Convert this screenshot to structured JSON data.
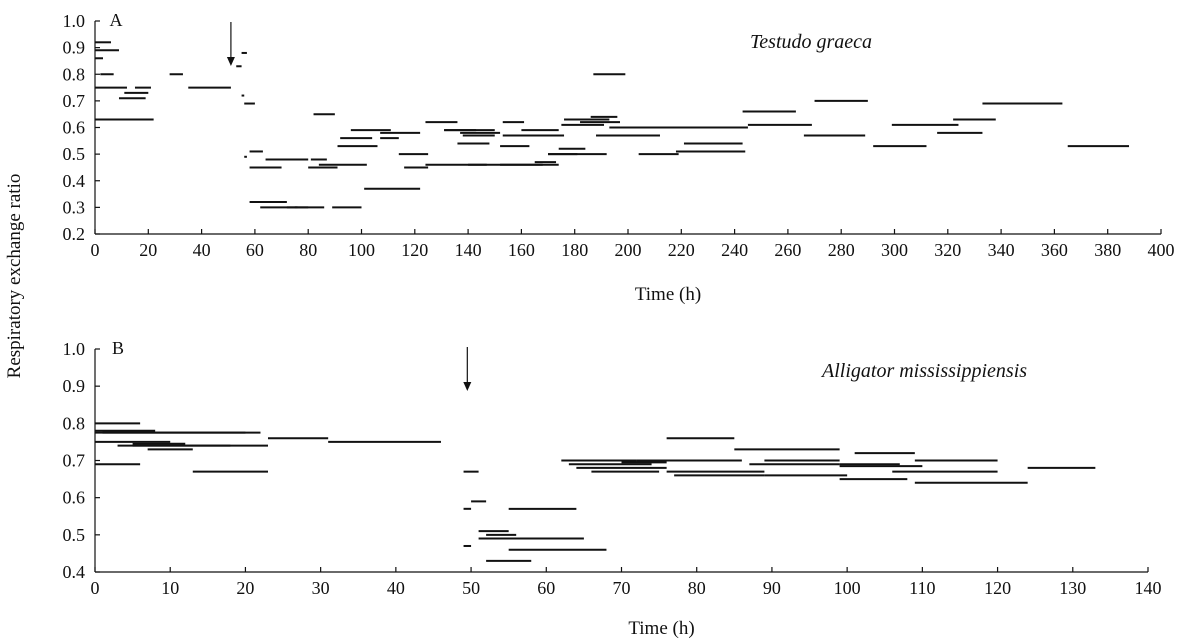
{
  "figure": {
    "shared_ylabel": "Respiratory exchange ratio"
  },
  "chart_data": [
    {
      "type": "line",
      "panel": "A",
      "annotation": "Testudo graeca",
      "xlabel": "Time (h)",
      "xlim": [
        0,
        400
      ],
      "ylim": [
        0.2,
        1.0
      ],
      "xticks": [
        0,
        20,
        40,
        60,
        80,
        100,
        120,
        140,
        160,
        180,
        200,
        220,
        240,
        260,
        280,
        300,
        320,
        340,
        360,
        380,
        400
      ],
      "yticks": [
        0.2,
        0.3,
        0.4,
        0.5,
        0.6,
        0.7,
        0.8,
        0.9,
        1.0
      ],
      "ytick_labels": [
        "0.2",
        "0.3",
        "0.4",
        "0.5",
        "0.6",
        "0.7",
        "0.8",
        "0.9",
        "1.0"
      ],
      "arrow_at_x": 51,
      "grid": false,
      "series": [
        {
          "segments": [
            [
              0,
              6,
              0.92
            ],
            [
              0,
              9,
              0.89
            ],
            [
              0,
              3,
              0.86
            ],
            [
              2,
              7,
              0.8
            ],
            [
              0,
              12,
              0.75
            ],
            [
              0,
              22,
              0.63
            ],
            [
              9,
              19,
              0.71
            ],
            [
              11,
              20,
              0.73
            ],
            [
              15,
              21,
              0.75
            ],
            [
              28,
              33,
              0.8
            ],
            [
              35,
              51,
              0.75
            ],
            [
              55,
              57,
              0.88
            ],
            [
              53,
              55,
              0.83
            ],
            [
              55,
              56,
              0.72
            ],
            [
              56,
              60,
              0.69
            ],
            [
              56,
              57,
              0.49
            ],
            [
              58,
              63,
              0.51
            ],
            [
              58,
              70,
              0.45
            ],
            [
              58,
              72,
              0.32
            ],
            [
              62,
              76,
              0.3
            ],
            [
              64,
              80,
              0.48
            ],
            [
              72,
              80,
              0.3
            ],
            [
              75,
              86,
              0.3
            ],
            [
              80,
              91,
              0.45
            ],
            [
              81,
              87,
              0.48
            ],
            [
              82,
              90,
              0.65
            ],
            [
              84,
              102,
              0.46
            ],
            [
              89,
              100,
              0.3
            ],
            [
              91,
              106,
              0.53
            ],
            [
              92,
              104,
              0.56
            ],
            [
              96,
              111,
              0.59
            ],
            [
              101,
              122,
              0.37
            ],
            [
              107,
              122,
              0.58
            ],
            [
              107,
              114,
              0.56
            ],
            [
              114,
              125,
              0.5
            ],
            [
              116,
              125,
              0.45
            ],
            [
              124,
              147,
              0.46
            ],
            [
              124,
              136,
              0.62
            ],
            [
              131,
              150,
              0.59
            ],
            [
              131,
              143,
              0.59
            ],
            [
              136,
              148,
              0.54
            ],
            [
              137,
              152,
              0.58
            ],
            [
              138,
              150,
              0.57
            ],
            [
              140,
              168,
              0.46
            ],
            [
              152,
              174,
              0.46
            ],
            [
              152,
              163,
              0.53
            ],
            [
              153,
              161,
              0.62
            ],
            [
              153,
              176,
              0.57
            ],
            [
              160,
              174,
              0.59
            ],
            [
              165,
              173,
              0.47
            ],
            [
              170,
              181,
              0.5
            ],
            [
              170,
              192,
              0.5
            ],
            [
              174,
              184,
              0.52
            ],
            [
              175,
              191,
              0.61
            ],
            [
              176,
              193,
              0.63
            ],
            [
              182,
              197,
              0.62
            ],
            [
              186,
              196,
              0.64
            ],
            [
              187,
              199,
              0.8
            ],
            [
              188,
              212,
              0.57
            ],
            [
              193,
              224,
              0.6
            ],
            [
              204,
              219,
              0.5
            ],
            [
              217,
              240,
              0.6
            ],
            [
              218,
              244,
              0.51
            ],
            [
              221,
              243,
              0.54
            ],
            [
              224,
              245,
              0.6
            ],
            [
              243,
              263,
              0.66
            ],
            [
              245,
              269,
              0.61
            ],
            [
              266,
              289,
              0.57
            ],
            [
              270,
              290,
              0.7
            ],
            [
              292,
              312,
              0.53
            ],
            [
              299,
              324,
              0.61
            ],
            [
              316,
              333,
              0.58
            ],
            [
              322,
              338,
              0.63
            ],
            [
              333,
              363,
              0.69
            ],
            [
              365,
              388,
              0.53
            ]
          ]
        }
      ]
    },
    {
      "type": "line",
      "panel": "B",
      "annotation": "Alligator mississippiensis",
      "xlabel": "Time (h)",
      "xlim": [
        0,
        140
      ],
      "ylim": [
        0.4,
        1.0
      ],
      "xticks": [
        0,
        10,
        20,
        30,
        40,
        50,
        60,
        70,
        80,
        90,
        100,
        110,
        120,
        130,
        140
      ],
      "yticks": [
        0.4,
        0.5,
        0.6,
        0.7,
        0.8,
        0.9,
        1.0
      ],
      "ytick_labels": [
        "0.4",
        "0.5",
        "0.6",
        "0.7",
        "0.8",
        "0.9",
        "1.0"
      ],
      "arrow_at_x": 49.5,
      "grid": false,
      "series": [
        {
          "segments": [
            [
              0,
              6,
              0.8
            ],
            [
              0,
              8,
              0.78
            ],
            [
              1,
              20,
              0.775
            ],
            [
              0,
              22,
              0.775
            ],
            [
              0,
              10,
              0.75
            ],
            [
              5,
              12,
              0.745
            ],
            [
              5,
              18,
              0.74
            ],
            [
              3,
              23,
              0.74
            ],
            [
              7,
              13,
              0.73
            ],
            [
              0,
              6,
              0.69
            ],
            [
              13,
              23,
              0.67
            ],
            [
              23,
              31,
              0.76
            ],
            [
              31,
              46,
              0.75
            ],
            [
              49,
              51,
              0.67
            ],
            [
              50,
              52,
              0.59
            ],
            [
              49,
              50,
              0.57
            ],
            [
              49,
              50,
              0.47
            ],
            [
              51,
              55,
              0.51
            ],
            [
              52,
              56,
              0.5
            ],
            [
              51,
              57,
              0.49
            ],
            [
              52,
              58,
              0.43
            ],
            [
              55,
              64,
              0.57
            ],
            [
              56,
              65,
              0.49
            ],
            [
              55,
              68,
              0.46
            ],
            [
              62,
              72,
              0.7
            ],
            [
              63,
              74,
              0.69
            ],
            [
              64,
              76,
              0.68
            ],
            [
              66,
              75,
              0.67
            ],
            [
              70,
              76,
              0.695
            ],
            [
              72,
              86,
              0.7
            ],
            [
              76,
              85,
              0.76
            ],
            [
              76,
              89,
              0.67
            ],
            [
              77,
              89,
              0.66
            ],
            [
              85,
              99,
              0.73
            ],
            [
              87,
              99,
              0.69
            ],
            [
              89,
              99,
              0.7
            ],
            [
              89,
              100,
              0.66
            ],
            [
              99,
              107,
              0.69
            ],
            [
              99,
              110,
              0.685
            ],
            [
              99,
              108,
              0.65
            ],
            [
              101,
              109,
              0.72
            ],
            [
              106,
              120,
              0.67
            ],
            [
              109,
              120,
              0.7
            ],
            [
              109,
              124,
              0.64
            ],
            [
              124,
              133,
              0.68
            ]
          ]
        }
      ]
    }
  ]
}
